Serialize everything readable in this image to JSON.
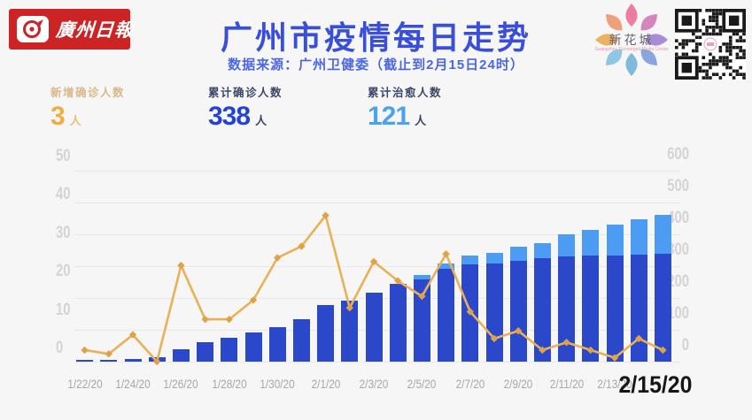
{
  "header": {
    "logo": {
      "text": "廣州日報",
      "bg_color": "#cc2424"
    },
    "title": "广州市疫情每日走势",
    "subtitle": "数据来源：广州卫健委（截止到2月15日24时）",
    "badge": {
      "name": "新花城",
      "subtext": "Guangzhou Converged Media Center"
    }
  },
  "colors": {
    "title": "#3a4fd8",
    "subtitle": "#4b67e3",
    "bar_confirmed": "#2b48cb",
    "bar_cured": "#4d9cf3",
    "line_new": "#e9b157",
    "marker_new": "#dfa246",
    "axis_gray": "#d4d4d7",
    "xlabel_gray": "#a7a7ab",
    "highlight_black": "#161616",
    "logo_red": "#cc2424"
  },
  "stats": [
    {
      "label": "新增确诊人数",
      "value": "3",
      "unit": "人",
      "label_color": "#d9b88a",
      "value_color": "#efae42",
      "unit_color": "#e7c27c"
    },
    {
      "label": "累计确诊人数",
      "value": "338",
      "unit": "人",
      "label_color": "#3a4767",
      "value_color": "#2443d5",
      "unit_color": "#3a4767"
    },
    {
      "label": "累计治愈人数",
      "value": "121",
      "unit": "人",
      "label_color": "#3a4767",
      "value_color": "#4aa3eb",
      "unit_color": "#3a4767"
    }
  ],
  "chart_data": {
    "type": "bar",
    "subtype": "stacked bars with line overlay",
    "x": [
      "1/22/20",
      "1/23/20",
      "1/24/20",
      "1/25/20",
      "1/26/20",
      "1/27/20",
      "1/28/20",
      "1/29/20",
      "1/30/20",
      "1/31/20",
      "2/1/20",
      "2/2/20",
      "2/3/20",
      "2/4/20",
      "2/5/20",
      "2/6/20",
      "2/7/20",
      "2/8/20",
      "2/9/20",
      "2/10/20",
      "2/11/20",
      "2/12/20",
      "2/13/20",
      "2/14/20",
      "2/15/20"
    ],
    "series": [
      {
        "name": "累计确诊人数",
        "type": "bar",
        "stack": "total",
        "axis": "right",
        "values": [
          2,
          3,
          8,
          14,
          40,
          60,
          75,
          90,
          108,
          132,
          177,
          192,
          217,
          243,
          258,
          290,
          303,
          306,
          316,
          324,
          328,
          332,
          333,
          335,
          338
        ]
      },
      {
        "name": "累计治愈人数",
        "type": "bar",
        "stack": "total",
        "axis": "right",
        "values": [
          0,
          0,
          0,
          0,
          0,
          0,
          0,
          0,
          0,
          0,
          0,
          0,
          0,
          0,
          13,
          16,
          28,
          34,
          43,
          47,
          69,
          79,
          96,
          110,
          121
        ]
      },
      {
        "name": "新增确诊人数",
        "type": "line",
        "axis": "left",
        "values": [
          3,
          2,
          7,
          0,
          25,
          11,
          11,
          16,
          27,
          30,
          38,
          14,
          26,
          21,
          17,
          28,
          13,
          6,
          8,
          3,
          5,
          3,
          1,
          6,
          3
        ]
      }
    ],
    "left_axis": {
      "ticks": [
        0,
        10,
        20,
        30,
        40,
        50
      ],
      "range": [
        0,
        50
      ]
    },
    "right_axis": {
      "ticks": [
        0,
        100,
        200,
        300,
        400,
        500,
        600
      ],
      "range": [
        0,
        600
      ]
    },
    "x_tick_labels": [
      "1/22/20",
      "1/24/20",
      "1/26/20",
      "1/28/20",
      "1/30/20",
      "2/1/20",
      "2/3/20",
      "2/5/20",
      "2/7/20",
      "2/9/20",
      "2/11/20",
      "2/13/20"
    ],
    "highlight_x_label": "2/15/20",
    "grid": true,
    "legend": "none"
  }
}
